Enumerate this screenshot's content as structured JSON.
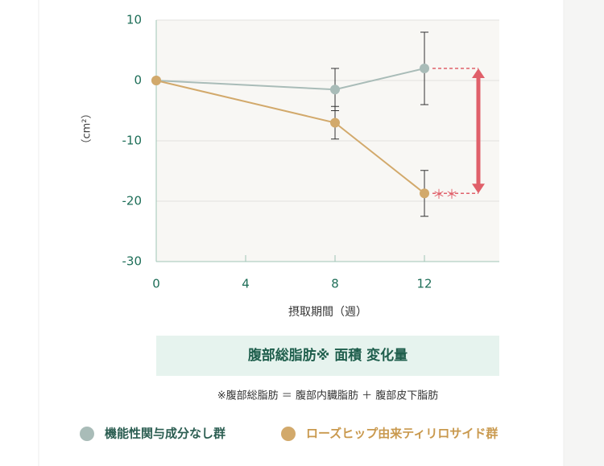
{
  "chart_data": {
    "type": "line",
    "x": [
      0,
      8,
      12
    ],
    "xlim": [
      0,
      15.35
    ],
    "xticks": [
      0,
      4,
      8,
      12
    ],
    "ylim": [
      -30,
      10
    ],
    "yticks": [
      10,
      0,
      -10,
      -20,
      -30
    ],
    "y_label": "（cm²）",
    "x_label": "摂取期間（週）",
    "grid": true,
    "series": [
      {
        "name": "機能性関与成分なし群",
        "color": "#a9bcb8",
        "values": [
          0,
          -1.5,
          2
        ],
        "errors": [
          0,
          3.5,
          6
        ]
      },
      {
        "name": "ローズヒップ由来ティリロサイド群",
        "color": "#d2a96b",
        "values": [
          0,
          -7,
          -18.7
        ],
        "errors": [
          0,
          2.7,
          3.8
        ]
      }
    ],
    "annotation": "＊＊",
    "title": "腹部総脂肪※ 面積 変化量",
    "note": "※腹部総脂肪 ＝ 腹部内臓脂肪 ＋ 腹部皮下脂肪"
  }
}
